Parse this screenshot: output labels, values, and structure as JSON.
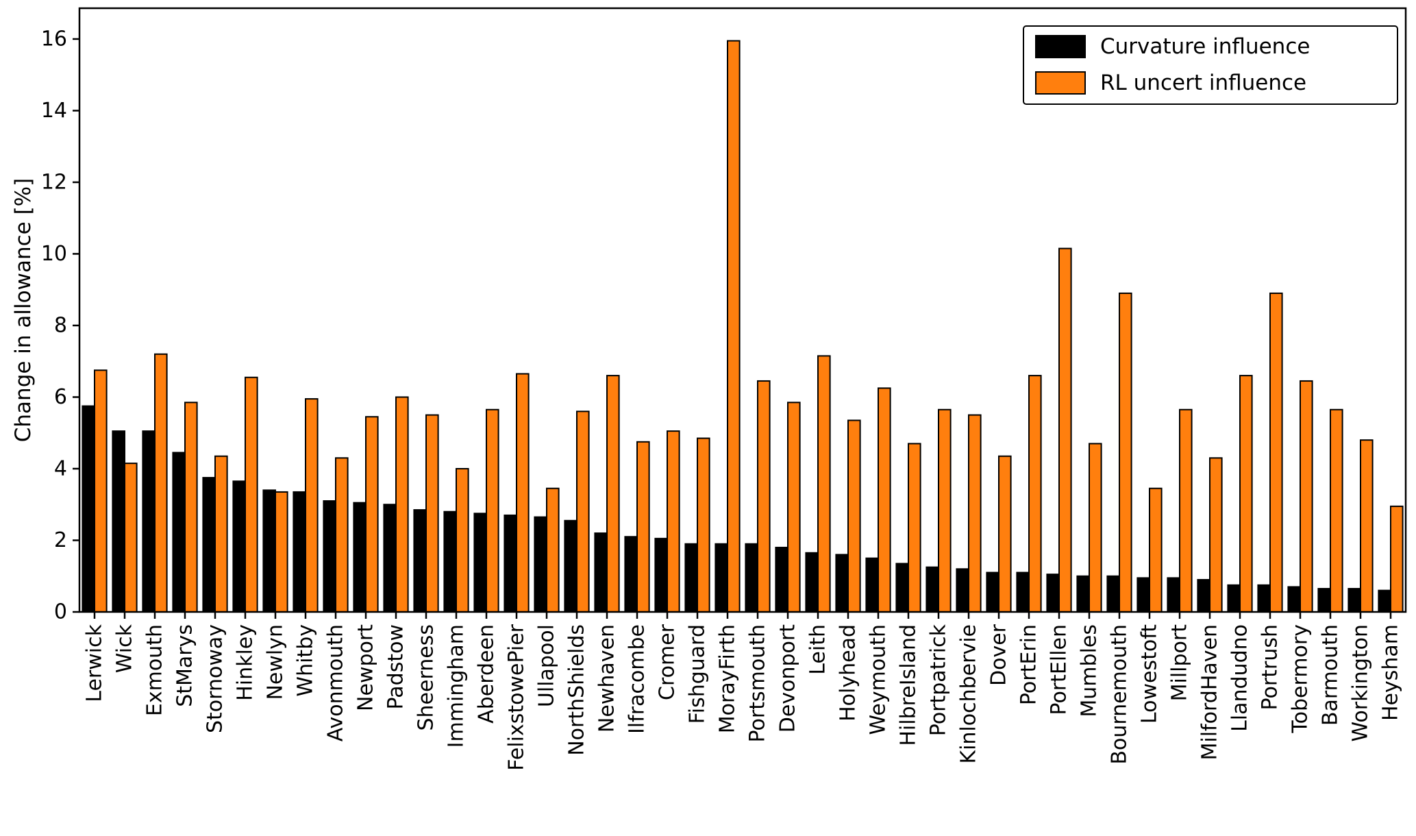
{
  "chart_data": {
    "type": "bar",
    "title": "",
    "xlabel": "",
    "ylabel": "Change in allowance [%]",
    "ylim": [
      0,
      16.86
    ],
    "yticks": [
      0,
      2,
      4,
      6,
      8,
      10,
      12,
      14,
      16
    ],
    "grid": false,
    "legend_position": "upper right",
    "bar_edge_color": "#000000",
    "background_color": "#ffffff",
    "categories": [
      "Lerwick",
      "Wick",
      "Exmouth",
      "StMarys",
      "Stornoway",
      "Hinkley",
      "Newlyn",
      "Whitby",
      "Avonmouth",
      "Newport",
      "Padstow",
      "Sheerness",
      "Immingham",
      "Aberdeen",
      "FelixstowePier",
      "Ullapool",
      "NorthShields",
      "Newhaven",
      "Ilfracombe",
      "Cromer",
      "Fishguard",
      "MorayFirth",
      "Portsmouth",
      "Devonport",
      "Leith",
      "Holyhead",
      "Weymouth",
      "HilbreIsland",
      "Portpatrick",
      "Kinlochbervie",
      "Dover",
      "PortErin",
      "PortEllen",
      "Mumbles",
      "Bournemouth",
      "Lowestoft",
      "Millport",
      "MilfordHaven",
      "Llandudno",
      "Portrush",
      "Tobermory",
      "Barmouth",
      "Workington",
      "Heysham"
    ],
    "series": [
      {
        "name": "Curvature influence",
        "color": "#000000",
        "values": [
          5.75,
          5.05,
          5.05,
          4.45,
          3.75,
          3.65,
          3.4,
          3.35,
          3.1,
          3.05,
          3.0,
          2.85,
          2.8,
          2.75,
          2.7,
          2.65,
          2.55,
          2.2,
          2.1,
          2.05,
          1.9,
          1.9,
          1.9,
          1.8,
          1.65,
          1.6,
          1.5,
          1.35,
          1.25,
          1.2,
          1.1,
          1.1,
          1.05,
          1.0,
          1.0,
          0.95,
          0.95,
          0.9,
          0.75,
          0.75,
          0.7,
          0.65,
          0.65,
          0.6
        ]
      },
      {
        "name": "RL uncert influence",
        "color": "#ff7f0e",
        "values": [
          6.75,
          4.15,
          7.2,
          5.85,
          4.35,
          6.55,
          3.35,
          5.95,
          4.3,
          5.45,
          6.0,
          5.5,
          4.0,
          5.65,
          6.65,
          3.45,
          5.6,
          6.6,
          4.75,
          5.05,
          4.85,
          15.95,
          6.45,
          5.85,
          7.15,
          5.35,
          6.25,
          4.7,
          5.65,
          5.5,
          4.35,
          6.6,
          10.15,
          4.7,
          8.9,
          3.45,
          5.65,
          4.3,
          6.6,
          8.9,
          6.45,
          5.65,
          4.8,
          2.95
        ]
      }
    ]
  }
}
